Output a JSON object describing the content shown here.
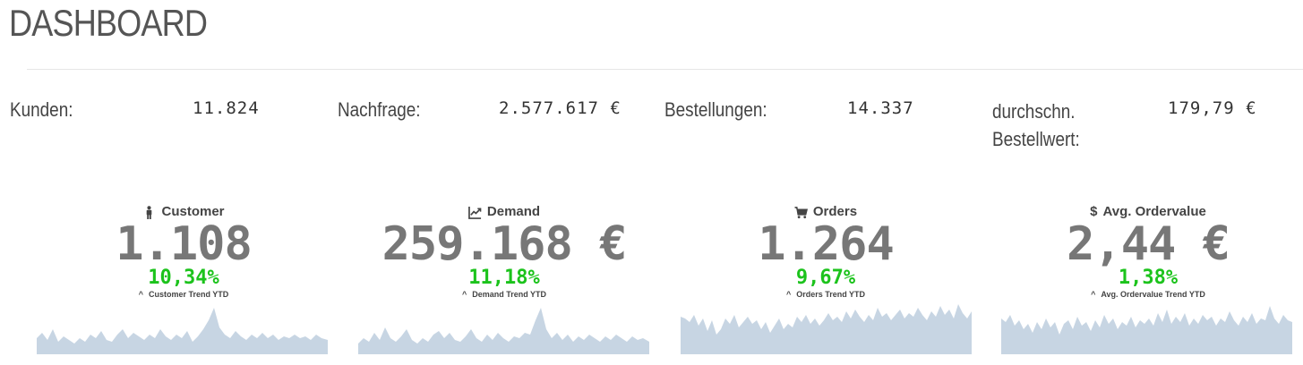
{
  "page": {
    "title": "DASHBOARD"
  },
  "stats": [
    {
      "label": "Kunden:",
      "value": "11.824"
    },
    {
      "label": "Nachfrage:",
      "value": "2.577.617 €"
    },
    {
      "label": "Bestellungen:",
      "value": "14.337"
    },
    {
      "label": "durchschn. Bestellwert:",
      "value": "179,79 €"
    }
  ],
  "kpis": [
    {
      "icon": "person-icon",
      "title": "Customer",
      "value": "1.108",
      "percent": "10,34%",
      "trend_label": "Customer Trend YTD"
    },
    {
      "icon": "line-chart-icon",
      "title": "Demand",
      "value": "259.168 €",
      "percent": "11,18%",
      "trend_label": "Demand Trend YTD"
    },
    {
      "icon": "shopping-cart-icon",
      "title": "Orders",
      "value": "1.264",
      "percent": "9,67%",
      "trend_label": "Orders Trend YTD"
    },
    {
      "icon": "dollar-icon",
      "title": "Avg. Ordervalue",
      "value": "2,44 €",
      "percent": "1,38%",
      "trend_label": "Avg. Ordervalue Trend YTD"
    }
  ],
  "colors": {
    "trend_positive": "#1cc31c",
    "kpi_value": "#777777",
    "sparkline_fill": "#c7d5e3"
  }
}
